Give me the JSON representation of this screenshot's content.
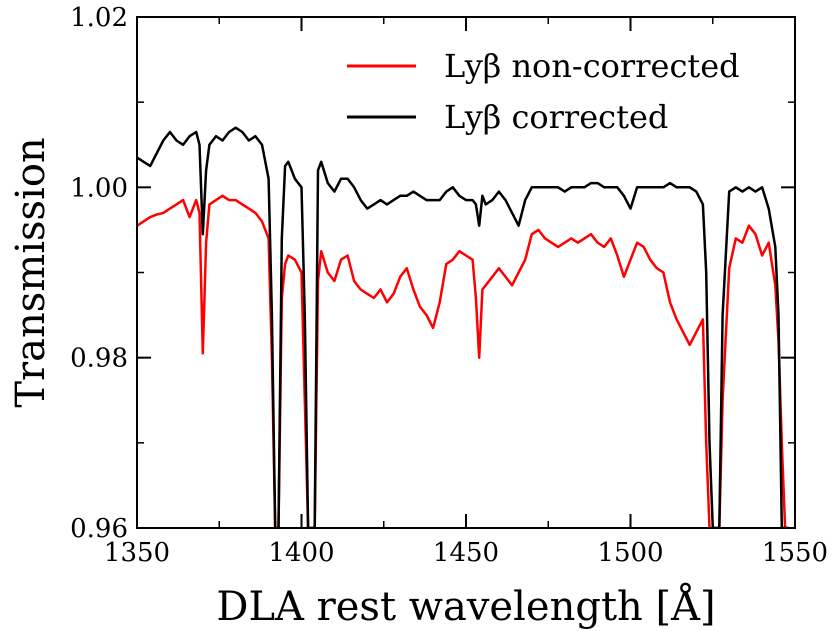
{
  "chart_data": {
    "type": "line",
    "xlabel": "DLA rest wavelength [Å]",
    "ylabel": "Transmission",
    "xlim": [
      1350,
      1550
    ],
    "ylim": [
      0.96,
      1.02
    ],
    "x_ticks": [
      1350,
      1400,
      1450,
      1500,
      1550
    ],
    "x_tick_labels": [
      "1350",
      "1400",
      "1450",
      "1500",
      "1550"
    ],
    "y_ticks": [
      0.96,
      0.98,
      1.0,
      1.02
    ],
    "y_tick_labels": [
      "0.96",
      "0.98",
      "1.00",
      "1.02"
    ],
    "grid": false,
    "legend_position": "top-right",
    "series": [
      {
        "name": "Lyβ non-corrected",
        "color": "#ff0000",
        "x": [
          1350,
          1352,
          1354,
          1356,
          1358,
          1360,
          1362,
          1364,
          1366,
          1368,
          1369,
          1370,
          1371,
          1372,
          1374,
          1376,
          1378,
          1380,
          1382,
          1384,
          1386,
          1388,
          1390,
          1391,
          1392,
          1393,
          1394,
          1395,
          1396,
          1398,
          1400,
          1401,
          1402,
          1403,
          1404,
          1405,
          1406,
          1408,
          1410,
          1412,
          1414,
          1416,
          1418,
          1420,
          1422,
          1424,
          1426,
          1428,
          1430,
          1432,
          1434,
          1436,
          1438,
          1440,
          1442,
          1444,
          1446,
          1448,
          1450,
          1452,
          1453,
          1454,
          1455,
          1456,
          1458,
          1460,
          1462,
          1464,
          1466,
          1468,
          1470,
          1472,
          1474,
          1476,
          1478,
          1480,
          1482,
          1484,
          1486,
          1488,
          1490,
          1492,
          1494,
          1496,
          1498,
          1500,
          1502,
          1504,
          1506,
          1508,
          1510,
          1512,
          1514,
          1516,
          1518,
          1520,
          1522,
          1523,
          1524,
          1525,
          1526,
          1527,
          1528,
          1530,
          1532,
          1534,
          1536,
          1538,
          1540,
          1542,
          1544,
          1545,
          1546,
          1547,
          1548
        ],
        "y": [
          0.9955,
          0.996,
          0.9965,
          0.9968,
          0.997,
          0.9975,
          0.998,
          0.9985,
          0.9965,
          0.9985,
          0.997,
          0.9805,
          0.9935,
          0.998,
          0.9985,
          0.999,
          0.9985,
          0.9985,
          0.998,
          0.9975,
          0.997,
          0.996,
          0.994,
          0.98,
          0.96,
          0.96,
          0.987,
          0.991,
          0.992,
          0.9915,
          0.99,
          0.975,
          0.96,
          0.96,
          0.96,
          0.989,
          0.9925,
          0.99,
          0.989,
          0.9915,
          0.992,
          0.989,
          0.988,
          0.9875,
          0.987,
          0.988,
          0.9865,
          0.9875,
          0.9895,
          0.9905,
          0.988,
          0.986,
          0.985,
          0.9835,
          0.9865,
          0.991,
          0.9915,
          0.9925,
          0.992,
          0.9915,
          0.987,
          0.98,
          0.988,
          0.9885,
          0.9895,
          0.9905,
          0.9895,
          0.9885,
          0.99,
          0.9915,
          0.9945,
          0.995,
          0.994,
          0.9935,
          0.993,
          0.9935,
          0.994,
          0.9935,
          0.994,
          0.9945,
          0.9935,
          0.993,
          0.994,
          0.992,
          0.9895,
          0.9915,
          0.9935,
          0.993,
          0.9915,
          0.9905,
          0.99,
          0.9865,
          0.9845,
          0.983,
          0.9815,
          0.983,
          0.9845,
          0.97,
          0.96,
          0.96,
          0.96,
          0.96,
          0.975,
          0.9905,
          0.994,
          0.9935,
          0.9955,
          0.9945,
          0.992,
          0.9935,
          0.9885,
          0.982,
          0.97,
          0.96,
          0.96
        ]
      },
      {
        "name": "Lyβ corrected",
        "color": "#000000",
        "x": [
          1350,
          1352,
          1354,
          1356,
          1358,
          1360,
          1362,
          1364,
          1366,
          1368,
          1369,
          1370,
          1371,
          1372,
          1374,
          1376,
          1378,
          1380,
          1382,
          1384,
          1386,
          1388,
          1390,
          1391,
          1392,
          1393,
          1394,
          1395,
          1396,
          1398,
          1400,
          1401,
          1402,
          1403,
          1404,
          1405,
          1406,
          1408,
          1410,
          1412,
          1414,
          1416,
          1418,
          1420,
          1422,
          1424,
          1426,
          1428,
          1430,
          1432,
          1434,
          1436,
          1438,
          1440,
          1442,
          1444,
          1446,
          1448,
          1450,
          1452,
          1453,
          1454,
          1455,
          1456,
          1458,
          1460,
          1462,
          1464,
          1466,
          1468,
          1470,
          1472,
          1474,
          1476,
          1478,
          1480,
          1482,
          1484,
          1486,
          1488,
          1490,
          1492,
          1494,
          1496,
          1498,
          1500,
          1502,
          1504,
          1506,
          1508,
          1510,
          1512,
          1514,
          1516,
          1518,
          1520,
          1522,
          1523,
          1524,
          1525,
          1526,
          1527,
          1528,
          1530,
          1532,
          1534,
          1536,
          1538,
          1540,
          1542,
          1544,
          1545,
          1546,
          1547,
          1548
        ],
        "y": [
          1.0035,
          1.003,
          1.0025,
          1.004,
          1.0055,
          1.0065,
          1.0055,
          1.005,
          1.006,
          1.0065,
          1.005,
          0.9945,
          1.002,
          1.005,
          1.006,
          1.0055,
          1.0065,
          1.007,
          1.0065,
          1.0055,
          1.006,
          1.005,
          1.001,
          0.985,
          0.96,
          0.96,
          0.994,
          1.0025,
          1.003,
          1.001,
          1.0,
          0.985,
          0.96,
          0.96,
          0.96,
          1.002,
          1.003,
          1.0005,
          0.9995,
          1.001,
          1.001,
          1.0,
          0.9985,
          0.9975,
          0.998,
          0.9985,
          0.998,
          0.9985,
          0.999,
          0.999,
          0.9995,
          0.999,
          0.9985,
          0.9985,
          0.9985,
          0.9995,
          1.0,
          0.999,
          0.9985,
          0.9985,
          0.998,
          0.9955,
          0.999,
          0.998,
          0.9985,
          0.9995,
          0.9985,
          0.997,
          0.9955,
          0.9985,
          1.0,
          1.0,
          1.0,
          1.0,
          1.0,
          0.9995,
          1.0,
          1.0,
          1.0,
          1.0005,
          1.0005,
          1.0,
          1.0,
          1.0,
          0.999,
          0.9975,
          1.0,
          1.0,
          1.0,
          1.0,
          1.0,
          1.0005,
          1.0,
          1.0,
          1.0,
          0.9995,
          0.998,
          0.99,
          0.97,
          0.96,
          0.96,
          0.96,
          0.985,
          0.9995,
          1.0,
          0.9995,
          1.0,
          0.9995,
          1.0,
          0.9975,
          0.993,
          0.985,
          0.96,
          0.96,
          0.96
        ]
      }
    ]
  }
}
